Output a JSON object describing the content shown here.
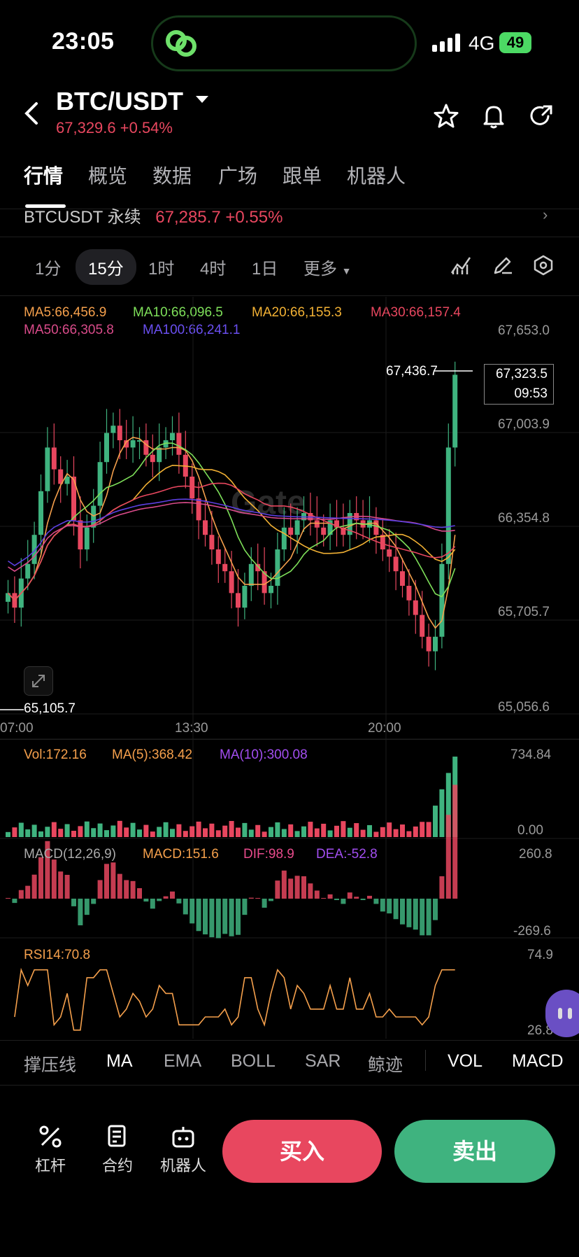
{
  "status": {
    "time": "23:05",
    "network": "4G",
    "battery": "49"
  },
  "header": {
    "pair": "BTC/USDT",
    "price_change": "67,329.6 +0.54%"
  },
  "tabs": [
    "行情",
    "概览",
    "数据",
    "广场",
    "跟单",
    "机器人"
  ],
  "perp": {
    "name": "BTCUSDT 永续",
    "price": "67,285.7 +0.55%"
  },
  "timeframes": [
    "1分",
    "15分",
    "1时",
    "4时",
    "1日",
    "更多"
  ],
  "active_timeframe": "15分",
  "ma_legend": {
    "ma5": "MA5:66,456.9",
    "ma10": "MA10:66,096.5",
    "ma20": "MA20:66,155.3",
    "ma30": "MA30:66,157.4",
    "ma50": "MA50:66,305.8",
    "ma100": "MA100:66,241.1"
  },
  "colors": {
    "up": "#3fb37f",
    "down": "#e8475f",
    "ma5": "#f5a04c",
    "ma10": "#7ee05a",
    "ma20": "#f2b134",
    "ma30": "#e8475f",
    "ma50": "#d94b8a",
    "ma100": "#5c3fe0",
    "dif": "#e84b8c",
    "dea": "#a24ef0"
  },
  "price_axis": [
    "67,653.0",
    "67,003.9",
    "66,354.8",
    "65,705.7",
    "65,056.6"
  ],
  "high_marker": "67,436.7",
  "low_marker": "65,105.7",
  "current_price_box": {
    "price": "67,323.5",
    "countdown": "09:53"
  },
  "time_axis": [
    "07:00",
    "13:30",
    "20:00"
  ],
  "volume": {
    "vol": "Vol:172.16",
    "ma5": "MA(5):368.42",
    "ma10": "MA(10):300.08",
    "max": "734.84",
    "min": "0.00"
  },
  "macd": {
    "title": "MACD(12,26,9)",
    "macd": "MACD:151.6",
    "dif": "DIF:98.9",
    "dea": "DEA:-52.8",
    "max": "260.8",
    "min": "-269.6"
  },
  "rsi": {
    "title": "RSI14:70.8",
    "max": "74.9",
    "min": "26.8"
  },
  "indicator_tabs": [
    "撑压线",
    "MA",
    "EMA",
    "BOLL",
    "SAR",
    "鲸迹",
    "VOL",
    "MACD"
  ],
  "tools": [
    "杠杆",
    "合约",
    "机器人"
  ],
  "buttons": {
    "buy": "买入",
    "sell": "卖出"
  },
  "chart_data": {
    "type": "candlestick",
    "interval": "15分",
    "x_ticks": [
      "07:00",
      "13:30",
      "20:00"
    ],
    "ylim": [
      65056.6,
      67653.0
    ],
    "high": 67436.7,
    "low": 65105.7,
    "last": 67323.5,
    "closes_approx": [
      65800,
      65700,
      65900,
      66000,
      66200,
      66500,
      66800,
      66650,
      66550,
      66600,
      66300,
      66100,
      66250,
      66400,
      66700,
      66900,
      66950,
      66850,
      66800,
      66850,
      66850,
      66750,
      66700,
      66800,
      66850,
      66900,
      66750,
      66600,
      66450,
      66300,
      66200,
      66100,
      66000,
      65950,
      65800,
      65700,
      65850,
      66000,
      65950,
      65800,
      65850,
      66100,
      66250,
      66200,
      66300,
      66350,
      66300,
      66250,
      66200,
      66300,
      66250,
      66200,
      66350,
      66300,
      66250,
      66300,
      66200,
      66100,
      66050,
      65950,
      65850,
      65750,
      65650,
      65500,
      65400,
      65500,
      66000,
      66800,
      67300
    ]
  }
}
